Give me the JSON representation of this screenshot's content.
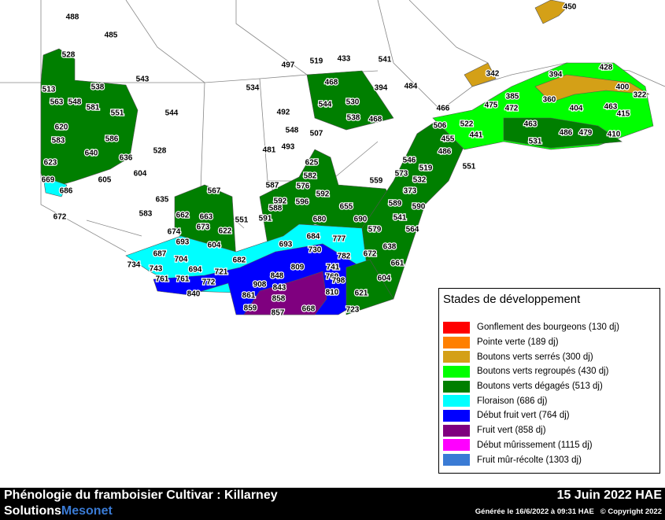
{
  "map": {
    "stations": [
      488,
      485,
      528,
      543,
      513,
      538,
      563,
      548,
      581,
      551,
      544,
      620,
      583,
      586,
      640,
      636,
      528,
      623,
      604,
      605,
      669,
      686,
      635,
      583,
      672,
      567,
      662,
      663,
      673,
      622,
      674,
      693,
      604,
      687,
      704,
      734,
      743,
      694,
      721,
      682,
      761,
      761,
      772,
      840,
      551,
      591,
      588,
      587,
      592,
      625,
      582,
      576,
      592,
      596,
      655,
      680,
      690,
      693,
      684,
      777,
      730,
      782,
      809,
      848,
      769,
      741,
      798,
      908,
      843,
      810,
      861,
      858,
      859,
      857,
      668,
      723,
      621,
      604,
      672,
      638,
      661,
      579,
      564,
      541,
      590,
      589,
      373,
      559,
      573,
      532,
      519,
      546,
      551,
      486,
      455,
      506,
      522,
      441,
      466,
      475,
      472,
      385,
      360,
      404,
      463,
      463,
      531,
      486,
      479,
      410,
      415,
      322,
      400,
      428,
      394,
      342,
      450,
      497,
      519,
      433,
      541,
      468,
      394,
      484,
      534,
      544,
      530,
      538,
      468,
      492,
      548,
      507,
      481,
      493
    ],
    "legend": {
      "title": "Stades de développement",
      "items": [
        {
          "label": "Gonflement des bourgeons (130 dj)",
          "color": "#ff0000"
        },
        {
          "label": "Pointe verte (189 dj)",
          "color": "#ff7f00"
        },
        {
          "label": "Boutons verts serrés (300 dj)",
          "color": "#d4a017"
        },
        {
          "label": "Boutons verts regroupés (430 dj)",
          "color": "#00ff00"
        },
        {
          "label": "Boutons verts dégagés (513 dj)",
          "color": "#007f00"
        },
        {
          "label": "Floraison (686 dj)",
          "color": "#00ffff"
        },
        {
          "label": "Début fruit vert (764 dj)",
          "color": "#0000ff"
        },
        {
          "label": "Fruit vert (858 dj)",
          "color": "#7f007f"
        },
        {
          "label": "Début mûrissement (1115 dj)",
          "color": "#ff00ff"
        },
        {
          "label": "Fruit mûr-récolte (1303 dj)",
          "color": "#3a7bd5"
        }
      ]
    },
    "footer": {
      "title": "Phénologie du framboisier Cultivar : Killarney",
      "brand": [
        "Solutions",
        "Mesonet"
      ],
      "date": "15 Juin 2022 HAE",
      "generated": "Générée le 16/6/2022 à 09:31 HAE   © Copyright 2022"
    }
  }
}
